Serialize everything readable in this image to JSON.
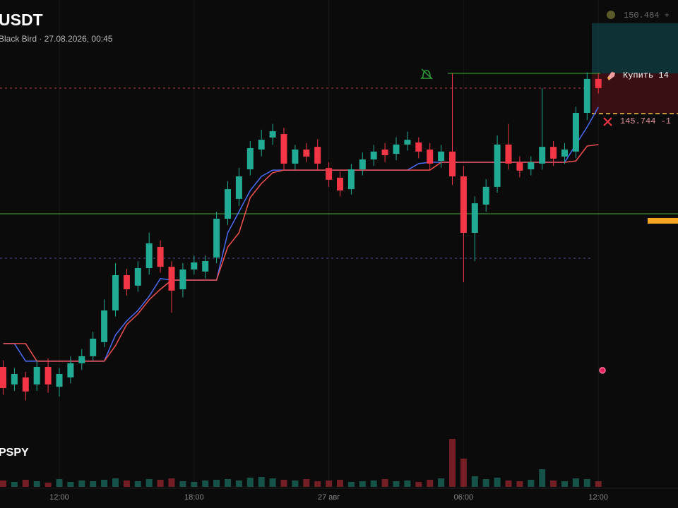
{
  "chart_data": {
    "type": "candlestick",
    "title": "USDT",
    "subtitle": "Black Bird · 27.08.2026, 00:45",
    "indicator_label": "PSPY",
    "categories": [
      null,
      null,
      null,
      null,
      null,
      "12:00",
      null,
      null,
      null,
      null,
      null,
      null,
      null,
      null,
      null,
      null,
      null,
      "18:00",
      null,
      null,
      null,
      null,
      null,
      null,
      null,
      null,
      null,
      null,
      null,
      "27 авг",
      null,
      null,
      null,
      null,
      null,
      null,
      null,
      null,
      null,
      null,
      null,
      "06:00",
      null,
      null,
      null,
      null,
      null,
      null,
      null,
      null,
      null,
      null,
      null,
      "12:00"
    ],
    "open": [
      132.46,
      131.54,
      131.91,
      131.54,
      132.46,
      131.42,
      131.91,
      132.65,
      133.02,
      133.76,
      135.42,
      137.27,
      136.72,
      137.64,
      138.75,
      137.71,
      136.53,
      137.57,
      137.46,
      138.2,
      140.23,
      141.27,
      142.82,
      143.86,
      144.49,
      144.67,
      143.12,
      143.86,
      144.0,
      142.89,
      142.38,
      141.78,
      142.82,
      143.34,
      143.86,
      143.63,
      144.12,
      144.23,
      143.86,
      143.26,
      143.75,
      142.45,
      139.49,
      140.97,
      141.9,
      144.12,
      143.19,
      142.82,
      143.12,
      144.0,
      143.49,
      143.75,
      145.78,
      147.56
    ],
    "high": [
      132.8,
      132.4,
      132.2,
      132.8,
      132.9,
      132.4,
      133.0,
      133.4,
      134.3,
      136.0,
      137.9,
      137.6,
      138.0,
      139.5,
      139.1,
      138.0,
      137.9,
      138.3,
      138.3,
      140.6,
      142.2,
      142.9,
      144.3,
      144.9,
      145.2,
      145.0,
      144.1,
      144.2,
      144.4,
      143.2,
      142.7,
      143.1,
      143.7,
      144.1,
      144.2,
      144.5,
      144.8,
      144.5,
      144.2,
      144.1,
      147.85,
      143.0,
      141.4,
      142.3,
      144.6,
      145.2,
      143.5,
      143.5,
      147.08,
      144.3,
      144.2,
      146.1,
      147.9,
      147.85
    ],
    "low": [
      131.0,
      131.2,
      130.7,
      131.2,
      131.1,
      130.9,
      131.6,
      132.3,
      132.8,
      133.5,
      135.1,
      136.2,
      136.4,
      137.3,
      137.4,
      135.3,
      136.1,
      137.3,
      137.1,
      137.9,
      139.9,
      140.9,
      142.5,
      143.5,
      144.1,
      142.8,
      142.8,
      143.2,
      142.8,
      141.9,
      141.4,
      141.5,
      142.5,
      143.0,
      143.2,
      143.3,
      143.8,
      143.4,
      142.8,
      142.9,
      142.0,
      136.9,
      138.0,
      140.6,
      141.6,
      142.8,
      142.4,
      142.5,
      142.8,
      143.0,
      143.1,
      143.4,
      145.4,
      146.8
    ],
    "close": [
      131.35,
      132.09,
      131.17,
      132.46,
      131.54,
      132.09,
      132.65,
      133.02,
      133.94,
      135.42,
      137.27,
      136.53,
      137.64,
      138.94,
      137.71,
      136.46,
      137.57,
      137.94,
      138.01,
      140.23,
      141.78,
      142.45,
      143.93,
      144.37,
      144.82,
      143.12,
      143.86,
      143.49,
      143.12,
      142.27,
      141.71,
      142.82,
      143.34,
      143.75,
      143.56,
      144.12,
      144.37,
      143.75,
      143.12,
      143.75,
      142.45,
      139.49,
      141.04,
      141.9,
      144.12,
      143.12,
      142.75,
      143.19,
      144.0,
      143.38,
      143.86,
      145.78,
      147.56,
      147.08
    ],
    "volume": [
      9,
      7,
      10,
      8,
      6,
      11,
      7,
      9,
      8,
      10,
      12,
      9,
      8,
      11,
      10,
      12,
      8,
      7,
      9,
      10,
      11,
      9,
      13,
      14,
      12,
      10,
      9,
      11,
      8,
      9,
      10,
      7,
      8,
      9,
      11,
      8,
      9,
      7,
      10,
      12,
      68,
      40,
      15,
      11,
      13,
      9,
      8,
      10,
      25,
      9,
      8,
      12,
      11,
      8
    ],
    "volume_lim": [
      0,
      100
    ],
    "up_color": "#22ab94",
    "down_color": "#f23645",
    "ylim": [
      129.5,
      151.7
    ],
    "lines": [
      {
        "color": "#4a6cf7",
        "values": [
          133.68,
          133.68,
          132.76,
          132.76,
          132.76,
          132.76,
          132.76,
          132.76,
          132.76,
          132.76,
          134.13,
          134.87,
          135.42,
          136.16,
          137.09,
          137.01,
          137.01,
          137.01,
          137.01,
          137.01,
          139.49,
          140.6,
          141.71,
          142.45,
          142.78,
          142.78,
          142.78,
          142.78,
          142.78,
          142.78,
          142.78,
          142.78,
          142.78,
          142.78,
          142.78,
          142.78,
          142.78,
          143.12,
          143.19,
          143.19,
          143.19,
          143.19,
          143.19,
          143.19,
          143.19,
          143.19,
          143.19,
          143.19,
          143.19,
          143.19,
          143.19,
          144.12,
          145.04,
          146.08
        ]
      },
      {
        "color": "#f0514f",
        "values": [
          133.68,
          133.68,
          133.68,
          132.76,
          132.76,
          132.76,
          132.76,
          132.76,
          132.76,
          132.76,
          133.57,
          134.68,
          135.24,
          135.98,
          136.53,
          137.01,
          137.01,
          137.01,
          137.01,
          137.01,
          138.75,
          139.49,
          141.34,
          142.08,
          142.64,
          142.78,
          142.78,
          142.78,
          142.78,
          142.78,
          142.78,
          142.78,
          142.78,
          142.78,
          142.78,
          142.78,
          142.78,
          142.78,
          142.78,
          143.19,
          143.19,
          143.19,
          143.19,
          143.19,
          143.19,
          143.19,
          143.19,
          143.19,
          143.19,
          143.19,
          143.19,
          143.26,
          144.04,
          144.12
        ]
      }
    ],
    "levels": [
      {
        "value": 140.49,
        "color": "#3fae3a",
        "style": "solid"
      },
      {
        "value": 147.08,
        "color": "#c0404a",
        "style": "dotted"
      },
      {
        "value": 138.16,
        "color": "#5a4a9a",
        "style": "dotted"
      }
    ],
    "take_profit": {
      "value": 150.484,
      "label": "150.484 +"
    },
    "entry": {
      "value": 147.85,
      "label": "Купить 14"
    },
    "stop_loss": {
      "value": 145.744,
      "label": "145.744 -1"
    },
    "marker": {
      "value": 132.28,
      "color": "#e0245e"
    },
    "price_tag": {
      "value": 140.12,
      "color": "#f5a623"
    }
  }
}
